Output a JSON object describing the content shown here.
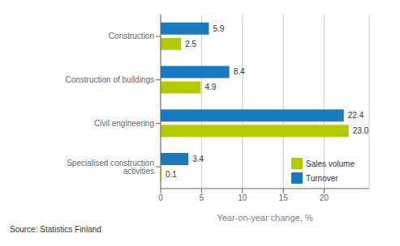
{
  "chart_data": {
    "type": "bar",
    "orientation": "horizontal",
    "categories": [
      "Construction",
      "Construction of buildings",
      "Civil engineering",
      "Specialised construction activities"
    ],
    "series": [
      {
        "name": "Turnover",
        "color": "#1a7abf",
        "values": [
          5.9,
          8.4,
          22.4,
          3.4
        ]
      },
      {
        "name": "Sales volume",
        "color": "#b5c900",
        "values": [
          2.5,
          4.9,
          23.0,
          0.1
        ],
        "value_labels": [
          "2.5",
          "4.9",
          "23.0",
          "0.1"
        ]
      }
    ],
    "xlabel": "Year-on-year change, %",
    "xlim": [
      0,
      25.5
    ],
    "xticks": [
      0,
      5,
      10,
      15,
      20
    ],
    "grid": true,
    "legend": "lower right",
    "data_labels": true,
    "annotations": [
      "Source: Statistics Finland"
    ]
  }
}
